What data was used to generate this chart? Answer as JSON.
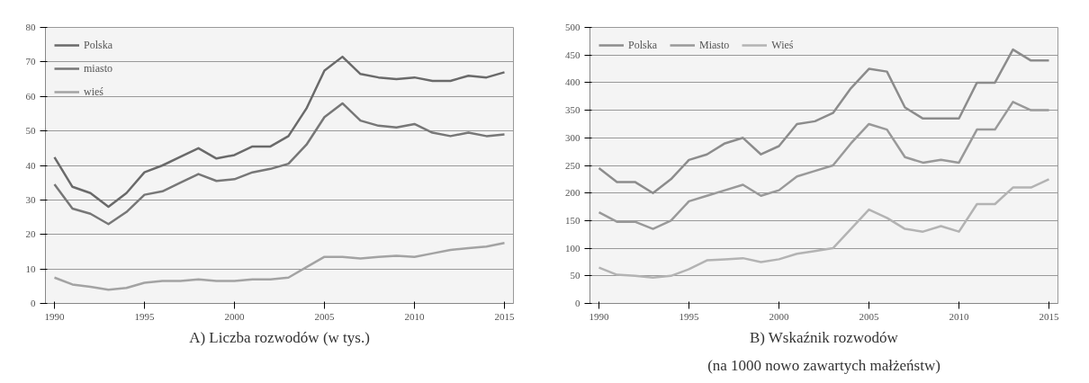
{
  "chart_data": [
    {
      "type": "line",
      "title": "A) Liczba rozwodów (w tys.)",
      "x": [
        1990,
        1991,
        1992,
        1993,
        1994,
        1995,
        1996,
        1997,
        1998,
        1999,
        2000,
        2001,
        2002,
        2003,
        2004,
        2005,
        2006,
        2007,
        2008,
        2009,
        2010,
        2011,
        2012,
        2013,
        2014,
        2015
      ],
      "xlim": [
        1989.5,
        2015.5
      ],
      "xticks": [
        1990,
        1995,
        2000,
        2005,
        2010,
        2015
      ],
      "ylim": [
        0,
        80
      ],
      "yticks": [
        0,
        10,
        20,
        30,
        40,
        50,
        60,
        70,
        80
      ],
      "grid": "y",
      "legend": "top left",
      "series": [
        {
          "name": "Polska",
          "color": "#6a6a6a",
          "values": [
            42.4,
            33.8,
            32,
            28,
            32,
            38,
            40,
            42.5,
            45,
            42,
            43,
            45.5,
            45.5,
            48.5,
            56.5,
            67.5,
            71.5,
            66.5,
            65.5,
            65,
            65.5,
            64.5,
            64.5,
            66,
            65.5,
            67
          ]
        },
        {
          "name": "miasto",
          "color": "#777777",
          "values": [
            34.5,
            27.5,
            26,
            23,
            26.5,
            31.5,
            32.5,
            35,
            37.5,
            35.5,
            36,
            38,
            39,
            40.5,
            46,
            54,
            58,
            53,
            51.5,
            51,
            52,
            49.5,
            48.5,
            49.5,
            48.5,
            49
          ]
        },
        {
          "name": "wieś",
          "color": "#a3a3a3",
          "values": [
            7.5,
            5.5,
            4.8,
            4,
            4.5,
            6,
            6.5,
            6.5,
            7,
            6.5,
            6.5,
            7,
            7,
            7.5,
            10.5,
            13.5,
            13.5,
            13,
            13.5,
            13.8,
            13.5,
            14.5,
            15.5,
            16,
            16.5,
            17.5
          ]
        }
      ]
    },
    {
      "type": "line",
      "title": "B) Wskaźnik rozwodów\n(na 1000 nowo zawartych małżeństw)",
      "x": [
        1990,
        1991,
        1992,
        1993,
        1994,
        1995,
        1996,
        1997,
        1998,
        1999,
        2000,
        2001,
        2002,
        2003,
        2004,
        2005,
        2006,
        2007,
        2008,
        2009,
        2010,
        2011,
        2012,
        2013,
        2014,
        2015
      ],
      "xlim": [
        1989.5,
        2015.5
      ],
      "xticks": [
        1990,
        1995,
        2000,
        2005,
        2010,
        2015
      ],
      "ylim": [
        0,
        500
      ],
      "yticks": [
        0,
        50,
        100,
        150,
        200,
        250,
        300,
        350,
        400,
        450,
        500
      ],
      "grid": "y",
      "legend": "top",
      "series": [
        {
          "name": "Polska",
          "color": "#8c8c8c",
          "values": [
            245,
            220,
            220,
            200,
            225,
            260,
            270,
            290,
            300,
            270,
            285,
            325,
            330,
            345,
            390,
            425,
            420,
            355,
            335,
            335,
            335,
            400,
            400,
            460,
            440,
            440
          ]
        },
        {
          "name": "Miasto",
          "color": "#999999",
          "values": [
            165,
            148,
            148,
            135,
            150,
            185,
            195,
            205,
            215,
            195,
            205,
            230,
            240,
            250,
            290,
            325,
            315,
            265,
            255,
            260,
            255,
            315,
            315,
            365,
            350,
            350
          ]
        },
        {
          "name": "Wieś",
          "color": "#b3b3b3",
          "values": [
            65,
            52,
            50,
            47,
            50,
            62,
            78,
            80,
            82,
            75,
            80,
            90,
            95,
            100,
            135,
            170,
            155,
            135,
            130,
            140,
            130,
            180,
            180,
            210,
            210,
            225
          ]
        }
      ]
    }
  ]
}
